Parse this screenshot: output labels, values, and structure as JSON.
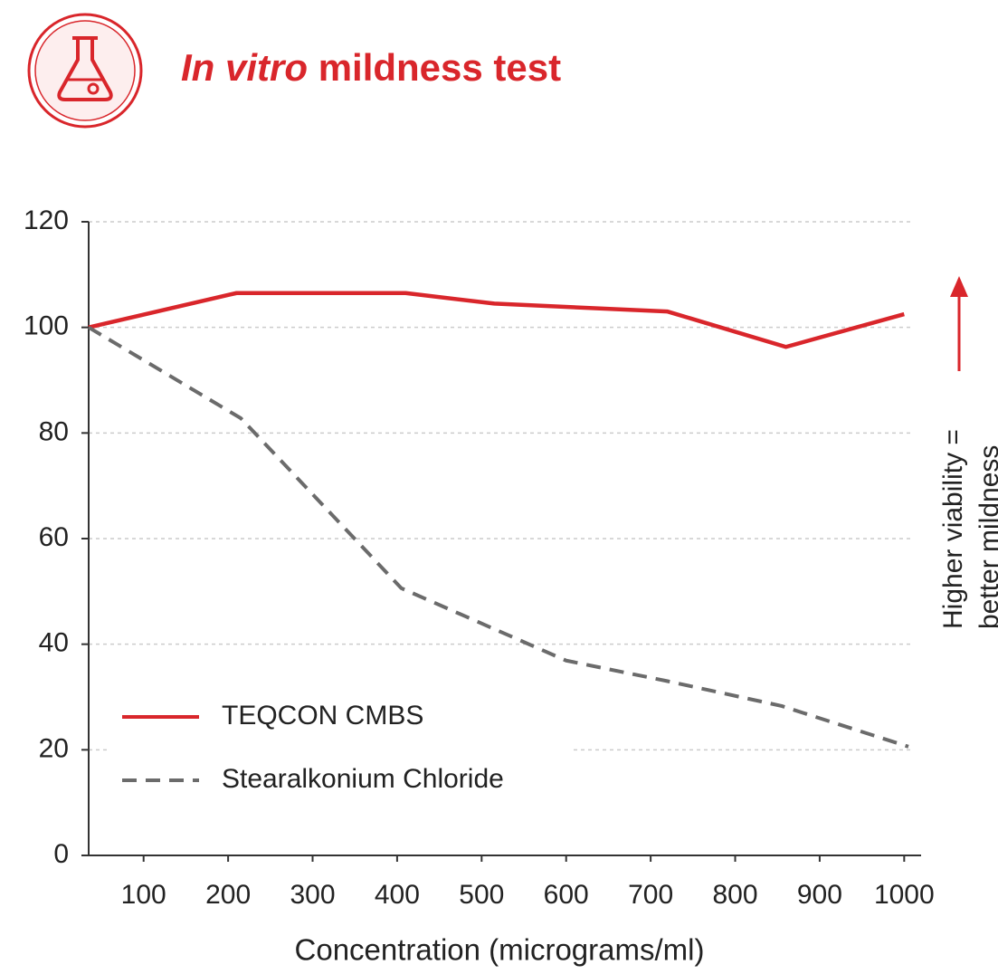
{
  "chart_data": {
    "type": "line",
    "title_italic": "In vitro",
    "title": "mildness test",
    "x_label": "Concentration (micrograms/ml)",
    "annotation": [
      "Higher viability =",
      "better mildness"
    ],
    "x": [
      35,
      210,
      410,
      515,
      720,
      860,
      1000
    ],
    "series": [
      {
        "name": "TEQCON CMBS",
        "color": "#d9262b",
        "dash": false,
        "x": [
          35,
          210,
          410,
          515,
          720,
          860,
          1000
        ],
        "values": [
          100,
          106.5,
          106.5,
          104.5,
          103,
          96.3,
          102.5
        ]
      },
      {
        "name": "Stearalkonium Chloride",
        "color": "#6b6b6b",
        "dash": true,
        "x": [
          35,
          215,
          405,
          600,
          720,
          855,
          1005
        ],
        "values": [
          100,
          82.8,
          50.6,
          36.9,
          33,
          28.3,
          20.6
        ]
      }
    ],
    "xlim": [
      35,
      1020
    ],
    "xticks": [
      100,
      200,
      300,
      400,
      500,
      600,
      700,
      800,
      900,
      1000
    ],
    "ylim": [
      0,
      120
    ],
    "yticks": [
      0,
      20,
      40,
      60,
      80,
      100,
      120
    ],
    "grid": true
  }
}
